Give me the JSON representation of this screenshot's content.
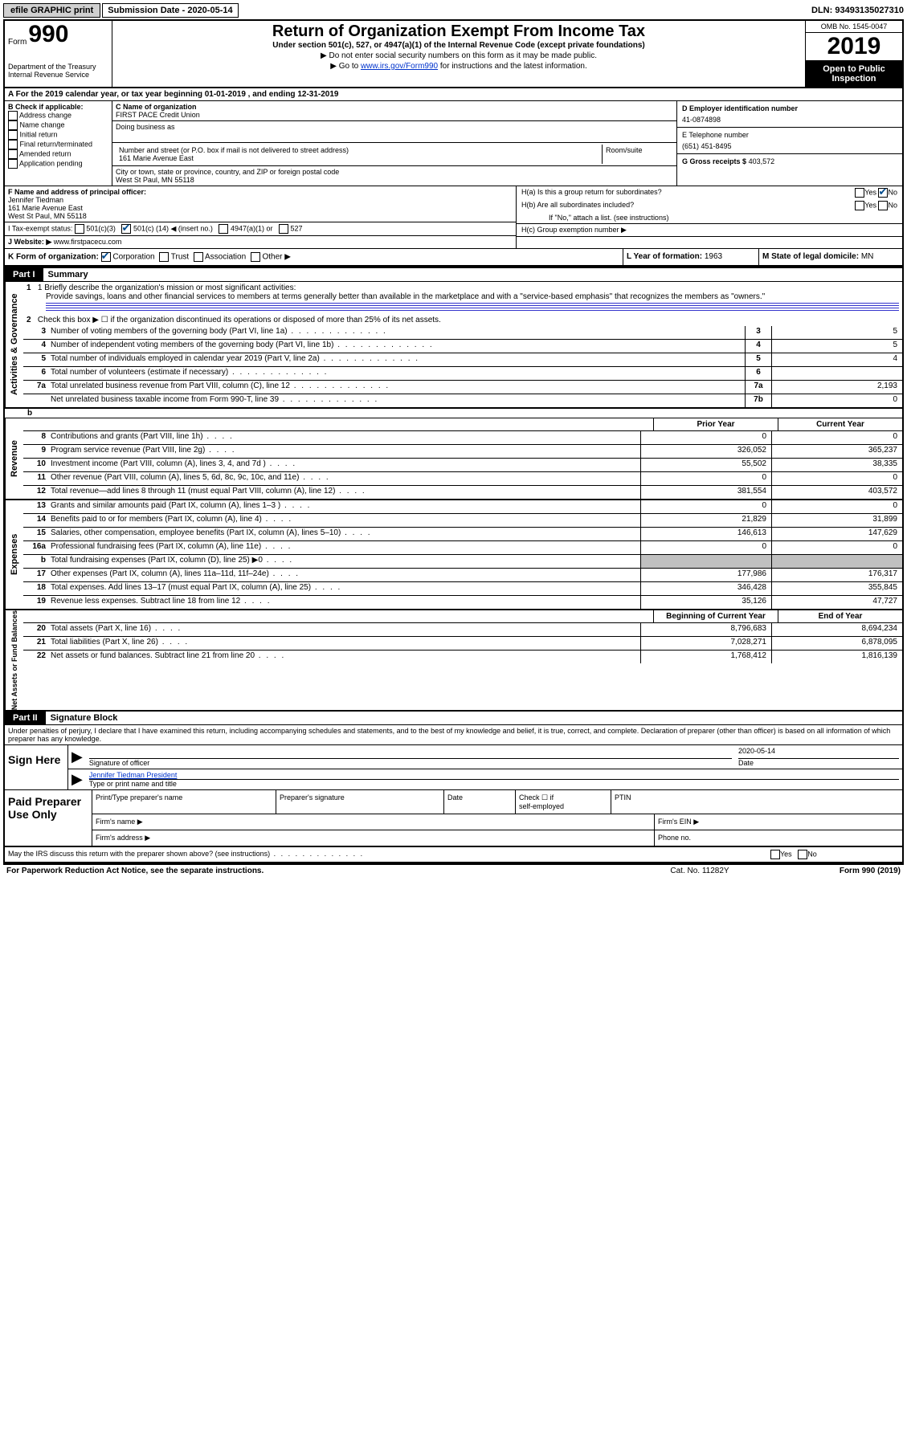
{
  "topbar": {
    "efile": "efile GRAPHIC print",
    "sub_label": "Submission Date -",
    "sub_date": "2020-05-14",
    "dln_label": "DLN:",
    "dln": "93493135027310"
  },
  "header": {
    "form_word": "Form",
    "form_num": "990",
    "dept": "Department of the Treasury\nInternal Revenue Service",
    "title": "Return of Organization Exempt From Income Tax",
    "sub": "Under section 501(c), 527, or 4947(a)(1) of the Internal Revenue Code (except private foundations)",
    "note1": "▶ Do not enter social security numbers on this form as it may be made public.",
    "note2_pre": "▶ Go to ",
    "note2_link": "www.irs.gov/Form990",
    "note2_post": " for instructions and the latest information.",
    "omb": "OMB No. 1545-0047",
    "year": "2019",
    "open": "Open to Public Inspection"
  },
  "rowA": "A For the 2019 calendar year, or tax year beginning 01-01-2019   , and ending 12-31-2019",
  "B": {
    "label": "B Check if applicable:",
    "items": [
      "Address change",
      "Name change",
      "Initial return",
      "Final return/terminated",
      "Amended return",
      "Application pending"
    ]
  },
  "C": {
    "name_label": "C Name of organization",
    "name": "FIRST PACE Credit Union",
    "dba_label": "Doing business as",
    "street_label": "Number and street (or P.O. box if mail is not delivered to street address)",
    "street": "161 Marie Avenue East",
    "room_label": "Room/suite",
    "city_label": "City or town, state or province, country, and ZIP or foreign postal code",
    "city": "West St Paul, MN  55118"
  },
  "D": {
    "label": "D Employer identification number",
    "value": "41-0874898"
  },
  "E": {
    "label": "E Telephone number",
    "value": "(651) 451-8495"
  },
  "G": {
    "label": "G Gross receipts $",
    "value": "403,572"
  },
  "F": {
    "label": "F  Name and address of principal officer:",
    "name": "Jennifer Tiedman",
    "addr1": "161 Marie Avenue East",
    "addr2": "West St Paul, MN  55118"
  },
  "H": {
    "a": "H(a)  Is this a group return for subordinates?",
    "a_yes": "Yes",
    "a_no": "No",
    "b": "H(b)  Are all subordinates included?",
    "b_yes": "Yes",
    "b_no": "No",
    "b_note": "If \"No,\" attach a list. (see instructions)",
    "c": "H(c)  Group exemption number ▶"
  },
  "I": {
    "label": "I    Tax-exempt status:",
    "opt1": "501(c)(3)",
    "opt2_pre": "501(c) (",
    "opt2_num": "14",
    "opt2_post": ") ◀ (insert no.)",
    "opt3": "4947(a)(1) or",
    "opt4": "527"
  },
  "J": {
    "label": "J   Website: ▶",
    "value": "www.firstpacecu.com"
  },
  "K": {
    "label": "K Form of organization:",
    "corp": "Corporation",
    "trust": "Trust",
    "assoc": "Association",
    "other": "Other ▶"
  },
  "L": {
    "label": "L Year of formation:",
    "value": "1963"
  },
  "M": {
    "label": "M State of legal domicile:",
    "value": "MN"
  },
  "part1": {
    "label": "Part I",
    "title": "Summary"
  },
  "part2": {
    "label": "Part II",
    "title": "Signature Block"
  },
  "summary": {
    "line1_label": "1   Briefly describe the organization's mission or most significant activities:",
    "line1_text": "Provide savings, loans and other financial services to members at terms generally better than available in the marketplace and with a \"service-based emphasis\" that recognizes the members as \"owners.\"",
    "line2": "Check this box ▶ ☐  if the organization discontinued its operations or disposed of more than 25% of its net assets.",
    "lines_ag": [
      {
        "n": "3",
        "t": "Number of voting members of the governing body (Part VI, line 1a)",
        "box": "3",
        "v": "5"
      },
      {
        "n": "4",
        "t": "Number of independent voting members of the governing body (Part VI, line 1b)",
        "box": "4",
        "v": "5"
      },
      {
        "n": "5",
        "t": "Total number of individuals employed in calendar year 2019 (Part V, line 2a)",
        "box": "5",
        "v": "4"
      },
      {
        "n": "6",
        "t": "Total number of volunteers (estimate if necessary)",
        "box": "6",
        "v": ""
      },
      {
        "n": "7a",
        "t": "Total unrelated business revenue from Part VIII, column (C), line 12",
        "box": "7a",
        "v": "2,193"
      },
      {
        "n": "",
        "t": "Net unrelated business taxable income from Form 990-T, line 39",
        "box": "7b",
        "v": "0"
      }
    ],
    "hdr_prior": "Prior Year",
    "hdr_curr": "Current Year",
    "revenue": [
      {
        "n": "8",
        "t": "Contributions and grants (Part VIII, line 1h)",
        "p": "0",
        "c": "0"
      },
      {
        "n": "9",
        "t": "Program service revenue (Part VIII, line 2g)",
        "p": "326,052",
        "c": "365,237"
      },
      {
        "n": "10",
        "t": "Investment income (Part VIII, column (A), lines 3, 4, and 7d )",
        "p": "55,502",
        "c": "38,335"
      },
      {
        "n": "11",
        "t": "Other revenue (Part VIII, column (A), lines 5, 6d, 8c, 9c, 10c, and 11e)",
        "p": "0",
        "c": "0"
      },
      {
        "n": "12",
        "t": "Total revenue—add lines 8 through 11 (must equal Part VIII, column (A), line 12)",
        "p": "381,554",
        "c": "403,572"
      }
    ],
    "expenses": [
      {
        "n": "13",
        "t": "Grants and similar amounts paid (Part IX, column (A), lines 1–3 )",
        "p": "0",
        "c": "0"
      },
      {
        "n": "14",
        "t": "Benefits paid to or for members (Part IX, column (A), line 4)",
        "p": "21,829",
        "c": "31,899"
      },
      {
        "n": "15",
        "t": "Salaries, other compensation, employee benefits (Part IX, column (A), lines 5–10)",
        "p": "146,613",
        "c": "147,629"
      },
      {
        "n": "16a",
        "t": "Professional fundraising fees (Part IX, column (A), line 11e)",
        "p": "0",
        "c": "0"
      },
      {
        "n": "b",
        "t": "Total fundraising expenses (Part IX, column (D), line 25) ▶0",
        "p": "",
        "c": "",
        "shaded": true
      },
      {
        "n": "17",
        "t": "Other expenses (Part IX, column (A), lines 11a–11d, 11f–24e)",
        "p": "177,986",
        "c": "176,317"
      },
      {
        "n": "18",
        "t": "Total expenses. Add lines 13–17 (must equal Part IX, column (A), line 25)",
        "p": "346,428",
        "c": "355,845"
      },
      {
        "n": "19",
        "t": "Revenue less expenses. Subtract line 18 from line 12",
        "p": "35,126",
        "c": "47,727"
      }
    ],
    "hdr_begin": "Beginning of Current Year",
    "hdr_end": "End of Year",
    "netassets": [
      {
        "n": "20",
        "t": "Total assets (Part X, line 16)",
        "p": "8,796,683",
        "c": "8,694,234"
      },
      {
        "n": "21",
        "t": "Total liabilities (Part X, line 26)",
        "p": "7,028,271",
        "c": "6,878,095"
      },
      {
        "n": "22",
        "t": "Net assets or fund balances. Subtract line 21 from line 20",
        "p": "1,768,412",
        "c": "1,816,139"
      }
    ]
  },
  "sidelabels": {
    "ag": "Activities & Governance",
    "rev": "Revenue",
    "exp": "Expenses",
    "na": "Net Assets or Fund Balances"
  },
  "sig": {
    "perjury": "Under penalties of perjury, I declare that I have examined this return, including accompanying schedules and statements, and to the best of my knowledge and belief, it is true, correct, and complete. Declaration of preparer (other than officer) is based on all information of which preparer has any knowledge.",
    "sign_here": "Sign Here",
    "sig_label": "Signature of officer",
    "date_label": "Date",
    "date_value": "2020-05-14",
    "name": "Jennifer Tiedman  President",
    "name_label": "Type or print name and title"
  },
  "prep": {
    "title": "Paid Preparer Use Only",
    "c1": "Print/Type preparer's name",
    "c2": "Preparer's signature",
    "c3": "Date",
    "c4a": "Check ☐ if",
    "c4b": "self-employed",
    "c5": "PTIN",
    "r2a": "Firm's name    ▶",
    "r2b": "Firm's EIN ▶",
    "r3a": "Firm's address ▶",
    "r3b": "Phone no."
  },
  "discuss": {
    "text": "May the IRS discuss this return with the preparer shown above? (see instructions)",
    "yes": "Yes",
    "no": "No"
  },
  "footer": {
    "l": "For Paperwork Reduction Act Notice, see the separate instructions.",
    "c": "Cat. No. 11282Y",
    "r": "Form 990 (2019)"
  }
}
